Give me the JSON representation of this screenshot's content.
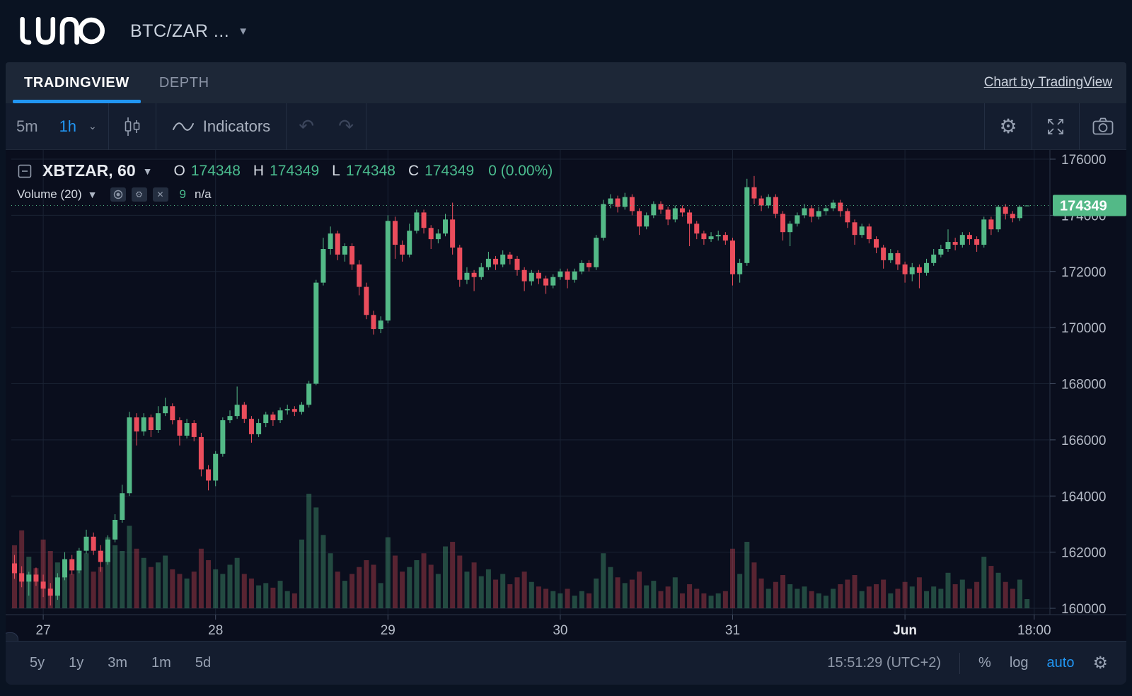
{
  "header": {
    "logo": "LUNO",
    "pair": "BTC/ZAR ..."
  },
  "tabs": {
    "tradingview": "TRADINGVIEW",
    "depth": "DEPTH",
    "attribution": "Chart by TradingView"
  },
  "toolbar": {
    "interval_5m": "5m",
    "interval_1h": "1h",
    "indicators": "Indicators"
  },
  "legend": {
    "symbol": "XBTZAR, 60",
    "o_label": "O",
    "o_value": "174348",
    "h_label": "H",
    "h_value": "174349",
    "l_label": "L",
    "l_value": "174348",
    "c_label": "C",
    "c_value": "174349",
    "change": "0 (0.00%)",
    "volume_label": "Volume (20)",
    "volume_value": "9",
    "volume_ma": "n/a"
  },
  "bottom": {
    "ranges": [
      "5y",
      "1y",
      "3m",
      "1m",
      "5d"
    ],
    "clock": "15:51:29 (UTC+2)",
    "percent": "%",
    "log": "log",
    "auto": "auto"
  },
  "colors": {
    "up": "#53b987",
    "down": "#eb4d5c",
    "accent": "#2196f3",
    "badge": "#53b987",
    "grid": "#1a2334",
    "axis_text": "#b6bcc8",
    "axis_line": "#2a3446"
  },
  "chart_data": {
    "type": "candlestick",
    "symbol": "XBTZAR",
    "interval_minutes": 60,
    "title": "XBTZAR, 60",
    "last_price": 174349,
    "last_price_label": "174349",
    "ohlc_current": {
      "open": 174348,
      "high": 174349,
      "low": 174348,
      "close": 174349,
      "change": 0,
      "change_pct": "0.00%"
    },
    "y_ticks": [
      176000,
      174000,
      172000,
      170000,
      168000,
      166000,
      164000,
      162000,
      160000
    ],
    "y_range": [
      159650,
      176330
    ],
    "x_ticks": [
      {
        "label": "27",
        "i": 4
      },
      {
        "label": "28",
        "i": 28
      },
      {
        "label": "29",
        "i": 52
      },
      {
        "label": "30",
        "i": 76
      },
      {
        "label": "31",
        "i": 100
      },
      {
        "label": "Jun",
        "i": 124,
        "bold": true
      },
      {
        "label": "18:00",
        "i": 142
      }
    ],
    "volume_pane": {
      "label": "Volume (20)",
      "current": 9,
      "ma": "n/a",
      "max_relative": 100
    },
    "candles_format": [
      "open",
      "high",
      "low",
      "close",
      "volume_relative"
    ],
    "candles": [
      [
        161600,
        161900,
        161050,
        161250,
        55
      ],
      [
        161250,
        161500,
        160750,
        160950,
        68
      ],
      [
        160950,
        161300,
        160450,
        161200,
        45
      ],
      [
        161200,
        161450,
        160800,
        160950,
        35
      ],
      [
        160950,
        161200,
        160400,
        160700,
        60
      ],
      [
        160700,
        160900,
        160100,
        160450,
        50
      ],
      [
        160450,
        161250,
        160300,
        161100,
        40
      ],
      [
        161100,
        162000,
        161000,
        161750,
        42
      ],
      [
        161750,
        161900,
        161200,
        161350,
        30
      ],
      [
        161350,
        162150,
        161250,
        162050,
        38
      ],
      [
        162050,
        162800,
        161950,
        162550,
        48
      ],
      [
        162550,
        162700,
        161900,
        162050,
        32
      ],
      [
        162050,
        162250,
        161300,
        161650,
        36
      ],
      [
        161650,
        162600,
        161550,
        162450,
        62
      ],
      [
        162450,
        163350,
        162350,
        163150,
        55
      ],
      [
        163150,
        164400,
        163050,
        164100,
        50
      ],
      [
        164100,
        167000,
        164000,
        166800,
        72
      ],
      [
        166800,
        166950,
        165800,
        166300,
        52
      ],
      [
        166300,
        166950,
        166150,
        166800,
        44
      ],
      [
        166800,
        166900,
        166100,
        166350,
        36
      ],
      [
        166350,
        167200,
        166250,
        166950,
        40
      ],
      [
        166950,
        167500,
        166850,
        167200,
        46
      ],
      [
        167200,
        167300,
        166550,
        166700,
        34
      ],
      [
        166700,
        166800,
        165800,
        166150,
        30
      ],
      [
        166150,
        166750,
        166050,
        166600,
        26
      ],
      [
        166600,
        166700,
        165950,
        166100,
        32
      ],
      [
        166100,
        166250,
        164700,
        164950,
        52
      ],
      [
        164950,
        165100,
        164200,
        164550,
        42
      ],
      [
        164550,
        165600,
        164350,
        165500,
        34
      ],
      [
        165500,
        166800,
        165400,
        166700,
        30
      ],
      [
        166700,
        167050,
        166600,
        166850,
        38
      ],
      [
        166850,
        167900,
        166750,
        167250,
        44
      ],
      [
        167250,
        167350,
        166600,
        166750,
        30
      ],
      [
        166750,
        166850,
        165900,
        166200,
        26
      ],
      [
        166200,
        166750,
        166100,
        166600,
        20
      ],
      [
        166600,
        167000,
        166450,
        166900,
        22
      ],
      [
        166900,
        167000,
        166500,
        166700,
        18
      ],
      [
        166700,
        167150,
        166600,
        167050,
        24
      ],
      [
        167050,
        167250,
        166900,
        167100,
        15
      ],
      [
        167100,
        167200,
        166850,
        167000,
        13
      ],
      [
        167000,
        167350,
        166900,
        167250,
        60
      ],
      [
        167250,
        168100,
        167150,
        168000,
        100
      ],
      [
        168000,
        171700,
        167950,
        171600,
        88
      ],
      [
        171600,
        173200,
        171500,
        172800,
        64
      ],
      [
        172800,
        173600,
        172600,
        173350,
        48
      ],
      [
        173350,
        173450,
        172400,
        172600,
        32
      ],
      [
        172600,
        173000,
        172350,
        172900,
        24
      ],
      [
        172900,
        173000,
        172050,
        172250,
        30
      ],
      [
        172250,
        172400,
        171150,
        171450,
        36
      ],
      [
        171450,
        171600,
        170300,
        170450,
        42
      ],
      [
        170450,
        170600,
        169750,
        169950,
        38
      ],
      [
        169950,
        170400,
        169800,
        170250,
        22
      ],
      [
        170250,
        174000,
        170150,
        173800,
        62
      ],
      [
        173800,
        173950,
        172450,
        172950,
        46
      ],
      [
        172950,
        173100,
        172350,
        172600,
        32
      ],
      [
        172600,
        173700,
        172500,
        173450,
        36
      ],
      [
        173450,
        174200,
        173350,
        174100,
        42
      ],
      [
        174100,
        174200,
        173350,
        173550,
        48
      ],
      [
        173550,
        173650,
        172800,
        173150,
        38
      ],
      [
        173150,
        173500,
        173000,
        173350,
        30
      ],
      [
        173350,
        174050,
        173250,
        173850,
        54
      ],
      [
        173850,
        174450,
        172600,
        172850,
        58
      ],
      [
        172850,
        172950,
        171450,
        171700,
        46
      ],
      [
        171700,
        172150,
        171550,
        171950,
        32
      ],
      [
        171950,
        172050,
        171300,
        171800,
        40
      ],
      [
        171800,
        172300,
        171700,
        172150,
        28
      ],
      [
        172150,
        172700,
        172050,
        172450,
        34
      ],
      [
        172450,
        172550,
        172050,
        172250,
        25
      ],
      [
        172250,
        172750,
        172150,
        172600,
        30
      ],
      [
        172600,
        172700,
        172250,
        172450,
        21
      ],
      [
        172450,
        172550,
        171850,
        172050,
        27
      ],
      [
        172050,
        172150,
        171300,
        171650,
        32
      ],
      [
        171650,
        172050,
        171500,
        171950,
        23
      ],
      [
        171950,
        172050,
        171550,
        171750,
        19
      ],
      [
        171750,
        171850,
        171200,
        171500,
        17
      ],
      [
        171500,
        171900,
        171400,
        171800,
        15
      ],
      [
        171800,
        172100,
        171700,
        172000,
        13
      ],
      [
        172000,
        172100,
        171400,
        171700,
        17
      ],
      [
        171700,
        172100,
        171600,
        172000,
        11
      ],
      [
        172000,
        172400,
        171900,
        172300,
        15
      ],
      [
        172300,
        172400,
        172000,
        172150,
        13
      ],
      [
        172150,
        173300,
        172050,
        173200,
        26
      ],
      [
        173200,
        174550,
        173100,
        174400,
        48
      ],
      [
        174400,
        174750,
        174250,
        174600,
        36
      ],
      [
        174600,
        174700,
        174100,
        174300,
        27
      ],
      [
        174300,
        174800,
        174200,
        174650,
        22
      ],
      [
        174650,
        174750,
        174000,
        174150,
        25
      ],
      [
        174150,
        174250,
        173300,
        173600,
        32
      ],
      [
        173600,
        174100,
        173500,
        174000,
        20
      ],
      [
        174000,
        174500,
        173900,
        174400,
        24
      ],
      [
        174400,
        174500,
        174050,
        174200,
        15
      ],
      [
        174200,
        174300,
        173650,
        173850,
        19
      ],
      [
        173850,
        174350,
        173750,
        174250,
        27
      ],
      [
        174250,
        174350,
        173950,
        174100,
        13
      ],
      [
        174100,
        174200,
        172900,
        173700,
        21
      ],
      [
        173700,
        173800,
        173150,
        173350,
        17
      ],
      [
        173350,
        173450,
        172950,
        173150,
        13
      ],
      [
        173150,
        173400,
        173050,
        173250,
        11
      ],
      [
        173250,
        173450,
        173100,
        173300,
        13
      ],
      [
        173300,
        173400,
        172950,
        173100,
        15
      ],
      [
        173100,
        173200,
        171500,
        171900,
        52
      ],
      [
        171900,
        172450,
        171600,
        172300,
        30
      ],
      [
        172300,
        175300,
        172200,
        175000,
        58
      ],
      [
        175000,
        175400,
        174400,
        174600,
        40
      ],
      [
        174600,
        174700,
        174150,
        174350,
        26
      ],
      [
        174350,
        174750,
        174250,
        174650,
        17
      ],
      [
        174650,
        174750,
        173900,
        174050,
        23
      ],
      [
        174050,
        174150,
        173100,
        173400,
        29
      ],
      [
        173400,
        173800,
        172900,
        173700,
        21
      ],
      [
        173700,
        174100,
        173600,
        174000,
        17
      ],
      [
        174000,
        174400,
        173900,
        174250,
        19
      ],
      [
        174250,
        174350,
        173750,
        173950,
        15
      ],
      [
        173950,
        174300,
        173850,
        174150,
        13
      ],
      [
        174150,
        174350,
        174000,
        174250,
        11
      ],
      [
        174250,
        174550,
        174150,
        174450,
        17
      ],
      [
        174450,
        174550,
        173950,
        174150,
        21
      ],
      [
        174150,
        174250,
        173550,
        173750,
        25
      ],
      [
        173750,
        173850,
        172950,
        173300,
        29
      ],
      [
        173300,
        173700,
        173200,
        173600,
        15
      ],
      [
        173600,
        173700,
        173000,
        173150,
        19
      ],
      [
        173150,
        173250,
        172650,
        172850,
        21
      ],
      [
        172850,
        172950,
        172100,
        172400,
        25
      ],
      [
        172400,
        172800,
        172300,
        172650,
        13
      ],
      [
        172650,
        172750,
        172050,
        172250,
        17
      ],
      [
        172250,
        172350,
        171600,
        171900,
        23
      ],
      [
        171900,
        172300,
        171650,
        172150,
        19
      ],
      [
        172150,
        172250,
        171400,
        171950,
        27
      ],
      [
        171950,
        172450,
        171850,
        172300,
        15
      ],
      [
        172300,
        172800,
        172200,
        172600,
        19
      ],
      [
        172600,
        172950,
        172500,
        172800,
        17
      ],
      [
        172800,
        173500,
        172700,
        173050,
        31
      ],
      [
        173050,
        173200,
        172750,
        172950,
        21
      ],
      [
        172950,
        173400,
        172850,
        173300,
        25
      ],
      [
        173300,
        173400,
        172950,
        173150,
        17
      ],
      [
        173150,
        173250,
        172700,
        172950,
        23
      ],
      [
        172950,
        173950,
        172850,
        173850,
        45
      ],
      [
        173850,
        173950,
        173300,
        173500,
        37
      ],
      [
        173500,
        174350,
        173400,
        174300,
        31
      ],
      [
        174300,
        174400,
        173850,
        174050,
        23
      ],
      [
        174050,
        174150,
        173750,
        173900,
        17
      ],
      [
        173900,
        174350,
        173800,
        174300,
        25
      ],
      [
        174348,
        174349,
        174348,
        174349,
        8
      ]
    ]
  }
}
